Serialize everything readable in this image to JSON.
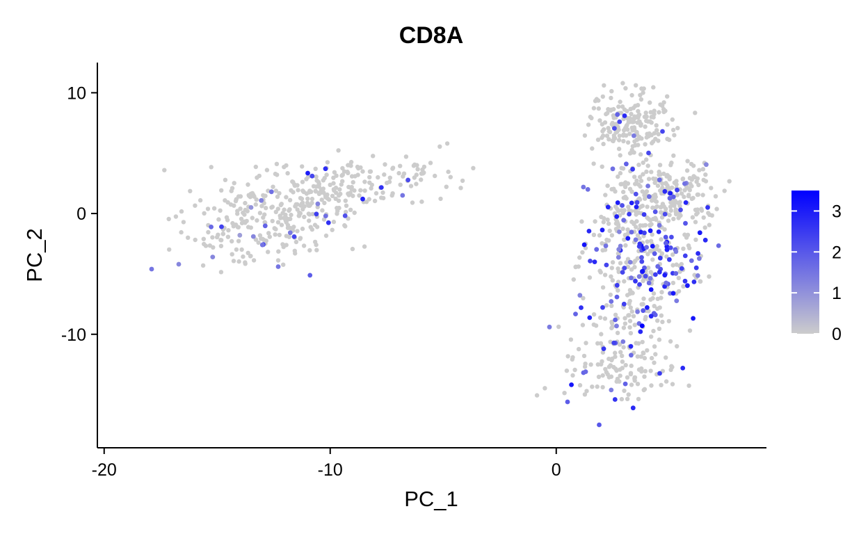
{
  "chart_data": {
    "type": "scatter",
    "title": "CD8A",
    "xlabel": "PC_1",
    "ylabel": "PC_2",
    "xlim": [
      -20.3,
      9.3
    ],
    "ylim": [
      -19.4,
      12.5
    ],
    "x_ticks": [
      {
        "value": -20,
        "label": "-20"
      },
      {
        "value": -10,
        "label": "-10"
      },
      {
        "value": 0,
        "label": "0"
      }
    ],
    "y_ticks": [
      {
        "value": 10,
        "label": "10"
      },
      {
        "value": 0,
        "label": "0"
      },
      {
        "value": -10,
        "label": "-10"
      }
    ],
    "grid": false,
    "color_scale": {
      "low": "#cccccc",
      "high": "#0000ff",
      "min": 0,
      "max": 3.5,
      "ticks": [
        {
          "value": 0,
          "label": "0"
        },
        {
          "value": 1,
          "label": "1"
        },
        {
          "value": 2,
          "label": "2"
        },
        {
          "value": 3,
          "label": "3"
        }
      ],
      "legend_position": "right"
    },
    "cluster_summary": [
      {
        "center": [
          -13.5,
          -0.5
        ],
        "spread": [
          1.5,
          2.0
        ],
        "count": 190,
        "expr_rate": 0.03
      },
      {
        "center": [
          -10.8,
          1.5
        ],
        "spread": [
          1.3,
          1.6
        ],
        "count": 150,
        "expr_rate": 0.03
      },
      {
        "center": [
          -8.2,
          2.6
        ],
        "spread": [
          1.4,
          1.1
        ],
        "count": 60,
        "expr_rate": 0.02
      },
      {
        "center": [
          -5.2,
          3.4
        ],
        "spread": [
          1.3,
          0.9
        ],
        "count": 22,
        "expr_rate": 0.0
      },
      {
        "center": [
          3.3,
          7.3
        ],
        "spread": [
          0.9,
          1.3
        ],
        "count": 190,
        "expr_rate": 0.02
      },
      {
        "center": [
          4.8,
          1.6
        ],
        "spread": [
          1.2,
          1.5
        ],
        "count": 220,
        "expr_rate": 0.12
      },
      {
        "center": [
          3.3,
          -0.8
        ],
        "spread": [
          1.0,
          1.4
        ],
        "count": 120,
        "expr_rate": 0.12
      },
      {
        "center": [
          4.2,
          -4.5
        ],
        "spread": [
          1.3,
          1.6
        ],
        "count": 160,
        "expr_rate": 0.45
      },
      {
        "center": [
          3.2,
          -8.3
        ],
        "spread": [
          1.0,
          1.4
        ],
        "count": 70,
        "expr_rate": 0.2
      },
      {
        "center": [
          2.8,
          -12.5
        ],
        "spread": [
          1.1,
          1.7
        ],
        "count": 130,
        "expr_rate": 0.06
      }
    ],
    "points": [
      {
        "x": -17.9,
        "y": -4.6,
        "value": 1.5
      },
      {
        "x": -16.7,
        "y": -4.2,
        "value": 1.2
      },
      {
        "x": -15.2,
        "y": -3.6,
        "value": 1.2
      },
      {
        "x": -14.0,
        "y": -1.8,
        "value": 0.8
      },
      {
        "x": -13.5,
        "y": 0.5,
        "value": 1.0
      },
      {
        "x": -13.4,
        "y": -1.9,
        "value": 1.2
      },
      {
        "x": -13.0,
        "y": -2.6,
        "value": 1.5
      },
      {
        "x": -12.3,
        "y": -4.4,
        "value": 1.5
      },
      {
        "x": -12.6,
        "y": 1.8,
        "value": 1.6
      },
      {
        "x": -10.8,
        "y": 3.1,
        "value": 2.3
      },
      {
        "x": -10.2,
        "y": -0.2,
        "value": 1.6
      },
      {
        "x": -6.8,
        "y": 1.5,
        "value": 1.5
      },
      {
        "x": 1.4,
        "y": 2.0,
        "value": 1.6
      },
      {
        "x": 2.5,
        "y": 3.7,
        "value": 1.6
      },
      {
        "x": 2.8,
        "y": 7.6,
        "value": 2.3
      },
      {
        "x": 4.7,
        "y": 6.8,
        "value": 2.3
      },
      {
        "x": 5.5,
        "y": 0.3,
        "value": 2.2
      },
      {
        "x": 6.7,
        "y": 0.5,
        "value": 2.6
      },
      {
        "x": 6.6,
        "y": -2.2,
        "value": 2.8
      },
      {
        "x": 6.2,
        "y": -4.5,
        "value": 2.5
      },
      {
        "x": 5.7,
        "y": -5.6,
        "value": 2.6
      },
      {
        "x": 1.7,
        "y": -4.0,
        "value": 2.8
      },
      {
        "x": 1.1,
        "y": -7.8,
        "value": 2.7
      },
      {
        "x": -0.3,
        "y": -9.4,
        "value": 1.4
      },
      {
        "x": 3.8,
        "y": -9.3,
        "value": 3.5
      },
      {
        "x": 4.2,
        "y": -8.5,
        "value": 2.8
      },
      {
        "x": 3.0,
        "y": -7.5,
        "value": 2.4
      },
      {
        "x": 2.1,
        "y": -11.2,
        "value": 2.6
      },
      {
        "x": 3.3,
        "y": -11.0,
        "value": 2.8
      },
      {
        "x": 1.3,
        "y": -13.1,
        "value": 1.7
      },
      {
        "x": 0.5,
        "y": -15.6,
        "value": 1.9
      },
      {
        "x": 2.6,
        "y": -15.4,
        "value": 2.6
      },
      {
        "x": 3.4,
        "y": -16.1,
        "value": 2.8
      },
      {
        "x": 1.9,
        "y": -17.5,
        "value": 2.0
      },
      {
        "x": 5.6,
        "y": -12.8,
        "value": 2.8
      },
      {
        "x": 4.8,
        "y": -5.1,
        "value": 3.0
      },
      {
        "x": 4.2,
        "y": -6.3,
        "value": 3.2
      },
      {
        "x": 3.5,
        "y": -5.6,
        "value": 2.6
      },
      {
        "x": 4.9,
        "y": -3.0,
        "value": 2.9
      },
      {
        "x": 3.9,
        "y": -1.6,
        "value": 2.4
      }
    ]
  }
}
